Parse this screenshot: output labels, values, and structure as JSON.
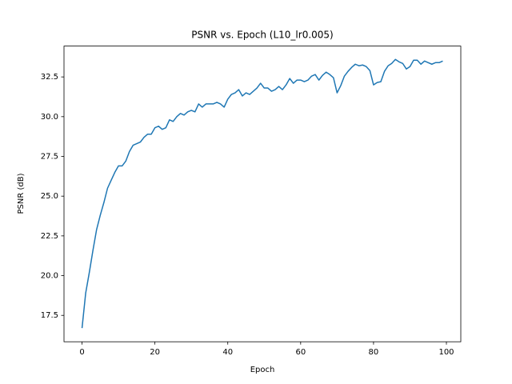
{
  "chart_data": {
    "type": "line",
    "title": "PSNR vs. Epoch (L10_lr0.005)",
    "x_label": "Epoch",
    "y_label": "PSNR (dB)",
    "color": "#1f77b4",
    "x": [
      0,
      1,
      2,
      3,
      4,
      5,
      6,
      7,
      8,
      9,
      10,
      11,
      12,
      13,
      14,
      15,
      16,
      17,
      18,
      19,
      20,
      21,
      22,
      23,
      24,
      25,
      26,
      27,
      28,
      29,
      30,
      31,
      32,
      33,
      34,
      35,
      36,
      37,
      38,
      39,
      40,
      41,
      42,
      43,
      44,
      45,
      46,
      47,
      48,
      49,
      50,
      51,
      52,
      53,
      54,
      55,
      56,
      57,
      58,
      59,
      60,
      61,
      62,
      63,
      64,
      65,
      66,
      67,
      68,
      69,
      70,
      71,
      72,
      73,
      74,
      75,
      76,
      77,
      78,
      79,
      80,
      81,
      82,
      83,
      84,
      85,
      86,
      87,
      88,
      89,
      90,
      91,
      92,
      93,
      94,
      95,
      96,
      97,
      98,
      99
    ],
    "values": [
      16.7,
      18.9,
      20.2,
      21.6,
      22.9,
      23.8,
      24.6,
      25.5,
      26.0,
      26.5,
      26.9,
      26.9,
      27.2,
      27.8,
      28.2,
      28.3,
      28.4,
      28.7,
      28.9,
      28.9,
      29.3,
      29.4,
      29.2,
      29.3,
      29.8,
      29.7,
      30.0,
      30.2,
      30.1,
      30.3,
      30.4,
      30.3,
      30.8,
      30.6,
      30.8,
      30.8,
      30.8,
      30.9,
      30.8,
      30.6,
      31.1,
      31.4,
      31.5,
      31.7,
      31.3,
      31.5,
      31.4,
      31.6,
      31.8,
      32.1,
      31.8,
      31.8,
      31.6,
      31.7,
      31.9,
      31.7,
      32.0,
      32.4,
      32.1,
      32.3,
      32.3,
      32.2,
      32.3,
      32.55,
      32.65,
      32.3,
      32.6,
      32.8,
      32.65,
      32.45,
      31.5,
      31.95,
      32.55,
      32.85,
      33.1,
      33.3,
      33.2,
      33.25,
      33.15,
      32.9,
      32.0,
      32.15,
      32.2,
      32.85,
      33.2,
      33.35,
      33.6,
      33.45,
      33.35,
      33.0,
      33.15,
      33.55,
      33.55,
      33.3,
      33.5,
      33.4,
      33.3,
      33.4,
      33.4,
      33.5
    ],
    "xlim": [
      -4.95,
      103.95
    ],
    "ylim": [
      15.84,
      34.44
    ],
    "xticks": [
      0,
      20,
      40,
      60,
      80,
      100
    ],
    "yticks": [
      17.5,
      {
        "value": 20,
        "label": "20.0"
      },
      22.5,
      {
        "value": 25,
        "label": "25.0"
      },
      27.5,
      {
        "value": 30,
        "label": "30.0"
      },
      32.5
    ]
  }
}
